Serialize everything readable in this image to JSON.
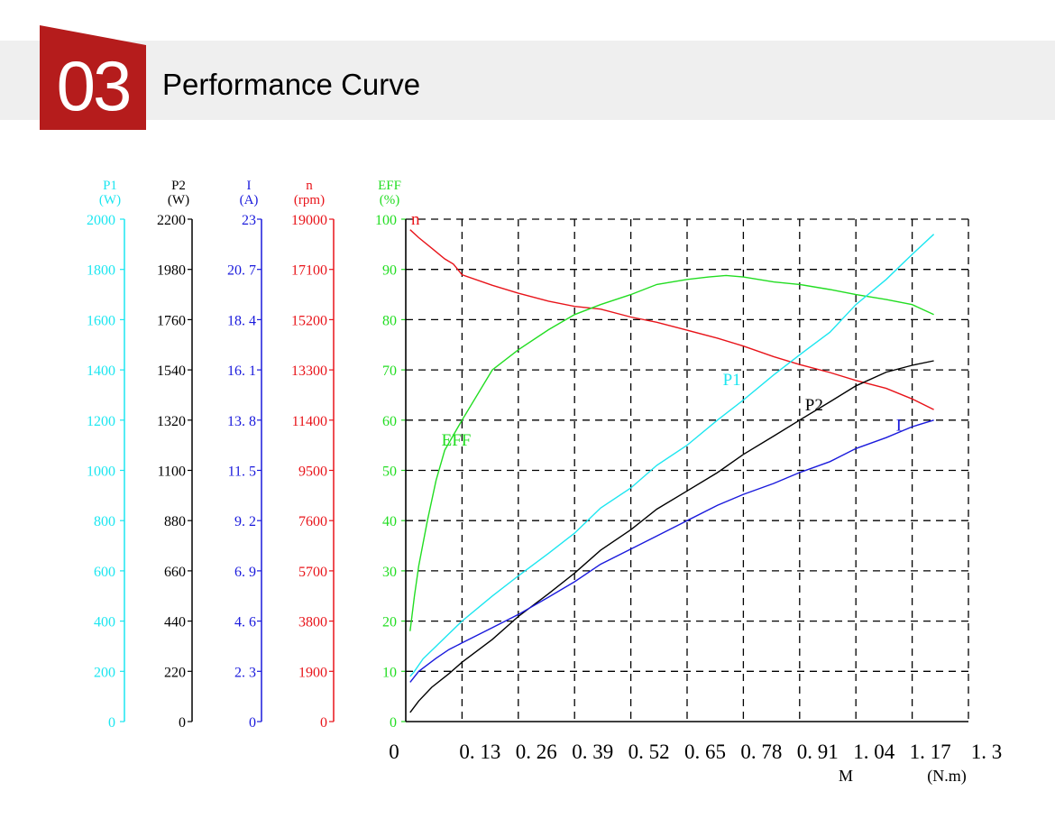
{
  "header": {
    "number": "03",
    "title": "Performance Curve"
  },
  "colors": {
    "badge": "#b51c1c",
    "banner": "#efefef",
    "p1": "#1ce6f0",
    "p2": "#000000",
    "current": "#1a1adc",
    "speed": "#e8141a",
    "eff": "#22dd22"
  },
  "chart_data": {
    "type": "line",
    "grid": true,
    "x": {
      "label": "M",
      "unit": "(N.m)",
      "range": [
        0,
        1.3
      ],
      "ticks": [
        "0",
        "0. 13",
        "0. 26",
        "0. 39",
        "0. 52",
        "0. 65",
        "0. 78",
        "0. 91",
        "1. 04",
        "1. 17",
        "1. 3"
      ]
    },
    "axes": [
      {
        "key": "p1",
        "name": "P1",
        "unit": "(W)",
        "range": [
          0,
          2000
        ],
        "ticks": [
          "0",
          "200",
          "400",
          "600",
          "800",
          "1000",
          "1200",
          "1400",
          "1600",
          "1800",
          "2000"
        ]
      },
      {
        "key": "p2",
        "name": "P2",
        "unit": "(W)",
        "range": [
          0,
          2200
        ],
        "ticks": [
          "0",
          "220",
          "440",
          "660",
          "880",
          "1100",
          "1320",
          "1540",
          "1760",
          "1980",
          "2200"
        ]
      },
      {
        "key": "current",
        "name": "I",
        "unit": "(A)",
        "range": [
          0,
          23
        ],
        "ticks": [
          "0",
          "2. 3",
          "4. 6",
          "6. 9",
          "9. 2",
          "11. 5",
          "13. 8",
          "16. 1",
          "18. 4",
          "20. 7",
          "23"
        ]
      },
      {
        "key": "speed",
        "name": "n",
        "unit": "(rpm)",
        "range": [
          0,
          19000
        ],
        "ticks": [
          "0",
          "1900",
          "3800",
          "5700",
          "7600",
          "9500",
          "11400",
          "13300",
          "15200",
          "17100",
          "19000"
        ]
      },
      {
        "key": "eff",
        "name": "EFF",
        "unit": "(%)",
        "range": [
          0,
          100
        ],
        "ticks": [
          "0",
          "10",
          "20",
          "30",
          "40",
          "50",
          "60",
          "70",
          "80",
          "90",
          "100"
        ]
      }
    ],
    "series": [
      {
        "key": "speed",
        "name": "n",
        "axis": "speed",
        "x": [
          0.01,
          0.03,
          0.06,
          0.09,
          0.11,
          0.13,
          0.2,
          0.26,
          0.33,
          0.39,
          0.45,
          0.52,
          0.58,
          0.65,
          0.72,
          0.78,
          0.85,
          0.91,
          0.98,
          1.04,
          1.11,
          1.17,
          1.22
        ],
        "y": [
          18600,
          18300,
          17900,
          17500,
          17300,
          16900,
          16500,
          16200,
          15900,
          15700,
          15600,
          15300,
          15100,
          14800,
          14500,
          14200,
          13800,
          13500,
          13200,
          12900,
          12600,
          12200,
          11800
        ]
      },
      {
        "key": "eff",
        "name": "EFF",
        "axis": "eff",
        "x": [
          0.01,
          0.02,
          0.03,
          0.05,
          0.07,
          0.09,
          0.13,
          0.2,
          0.26,
          0.33,
          0.39,
          0.45,
          0.52,
          0.58,
          0.65,
          0.7,
          0.74,
          0.78,
          0.85,
          0.91,
          0.98,
          1.04,
          1.11,
          1.17,
          1.22
        ],
        "y": [
          18,
          25,
          31,
          40,
          48,
          54,
          60,
          70,
          74,
          78,
          81,
          83,
          85,
          87,
          88,
          88.5,
          88.8,
          88.5,
          87.5,
          87,
          86,
          85,
          84,
          83,
          81
        ]
      },
      {
        "key": "p1",
        "name": "P1",
        "axis": "p1",
        "x": [
          0.01,
          0.02,
          0.04,
          0.07,
          0.1,
          0.13,
          0.2,
          0.26,
          0.33,
          0.39,
          0.45,
          0.52,
          0.58,
          0.65,
          0.72,
          0.78,
          0.85,
          0.91,
          0.98,
          1.04,
          1.11,
          1.17,
          1.22
        ],
        "y": [
          180,
          200,
          250,
          300,
          350,
          400,
          500,
          580,
          670,
          750,
          850,
          930,
          1020,
          1100,
          1200,
          1280,
          1380,
          1460,
          1550,
          1660,
          1760,
          1860,
          1940
        ]
      },
      {
        "key": "p2",
        "name": "P2",
        "axis": "p2",
        "x": [
          0.01,
          0.03,
          0.06,
          0.1,
          0.13,
          0.2,
          0.26,
          0.33,
          0.39,
          0.45,
          0.52,
          0.58,
          0.65,
          0.72,
          0.78,
          0.85,
          0.91,
          0.98,
          1.04,
          1.11,
          1.17,
          1.22
        ],
        "y": [
          40,
          90,
          150,
          210,
          260,
          360,
          460,
          560,
          650,
          750,
          840,
          930,
          1010,
          1090,
          1170,
          1250,
          1320,
          1400,
          1470,
          1530,
          1560,
          1580
        ]
      },
      {
        "key": "current",
        "name": "I",
        "axis": "current",
        "x": [
          0.01,
          0.03,
          0.07,
          0.1,
          0.13,
          0.2,
          0.26,
          0.33,
          0.39,
          0.45,
          0.52,
          0.58,
          0.65,
          0.72,
          0.78,
          0.85,
          0.91,
          0.98,
          1.04,
          1.11,
          1.17,
          1.22
        ],
        "y": [
          1.8,
          2.3,
          2.9,
          3.3,
          3.6,
          4.3,
          4.9,
          5.7,
          6.4,
          7.2,
          7.9,
          8.5,
          9.2,
          9.9,
          10.4,
          10.9,
          11.4,
          11.9,
          12.5,
          13.0,
          13.5,
          13.8
        ]
      }
    ],
    "annotations": [
      {
        "text": "n",
        "series": "speed",
        "x": 0.0,
        "y": 100
      },
      {
        "text": "EFF",
        "series": "eff",
        "x": 0.07,
        "y": 56
      },
      {
        "text": "P1",
        "series": "p1",
        "x": 0.72,
        "y": 68
      },
      {
        "text": "P2",
        "series": "p2",
        "x": 0.91,
        "y": 63
      },
      {
        "text": "I",
        "series": "current",
        "x": 1.12,
        "y": 59
      }
    ]
  }
}
